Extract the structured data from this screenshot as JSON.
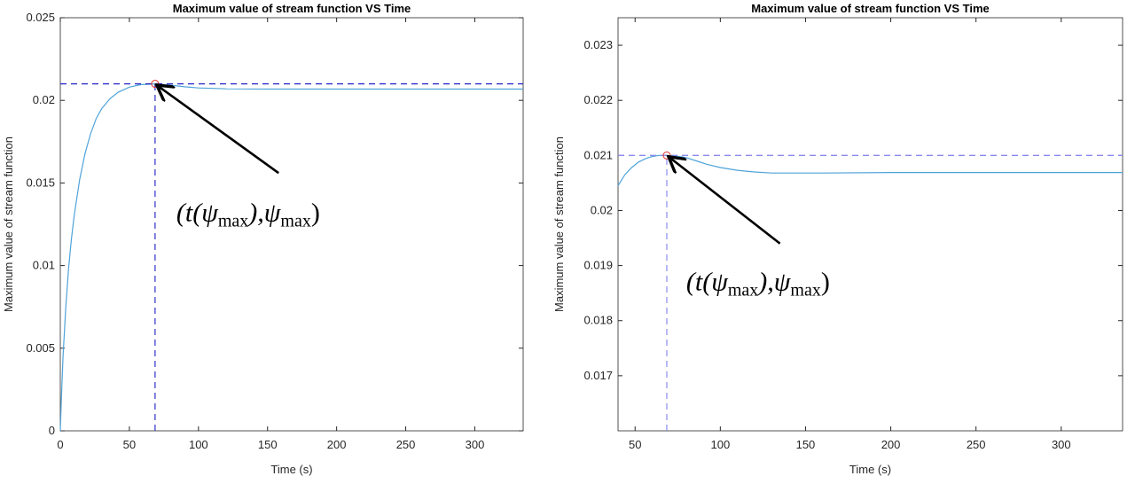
{
  "chart_data": [
    {
      "type": "line",
      "title": "Maximum value of stream function VS Time",
      "xlabel": "Time (s)",
      "ylabel": "Maximum value of stream function",
      "xlim": [
        0,
        335
      ],
      "ylim": [
        0,
        0.025
      ],
      "xticks": [
        0,
        50,
        100,
        150,
        200,
        250,
        300
      ],
      "xtick_labels": [
        "0",
        "50",
        "100",
        "150",
        "200",
        "250",
        "300"
      ],
      "yticks": [
        0,
        0.005,
        0.01,
        0.015,
        0.02,
        0.025
      ],
      "ytick_labels": [
        "0",
        "0.005",
        "0.01",
        "0.015",
        "0.02",
        "0.025"
      ],
      "grid": false,
      "series": [
        {
          "x": [
            0,
            1,
            2,
            4,
            6,
            8,
            10,
            14,
            18,
            22,
            26,
            30,
            36,
            42,
            50,
            58,
            68.6,
            80,
            90,
            100,
            120,
            150,
            200,
            250,
            300,
            335
          ],
          "y": [
            0,
            0.0025,
            0.0045,
            0.0075,
            0.0098,
            0.0116,
            0.013,
            0.0152,
            0.0168,
            0.018,
            0.0189,
            0.0195,
            0.0201,
            0.0205,
            0.0208,
            0.02095,
            0.021,
            0.02092,
            0.02082,
            0.02075,
            0.0207,
            0.02068,
            0.02068,
            0.02068,
            0.02068,
            0.02068
          ]
        }
      ],
      "peak": {
        "x": 68.6,
        "y": 0.021
      },
      "reference_lines": {
        "horizontal_y": 0.021,
        "vertical_x": 68.6
      },
      "annotation": {
        "text_main": "(t(ψ",
        "sub": "max",
        "text_mid": "),ψ",
        "text_end": ")",
        "xy": [
          68.6,
          0.021
        ],
        "xytext": [
          158,
          0.0156
        ],
        "text_at": [
          84,
          0.0127
        ]
      },
      "colors": {
        "line": "#4fa3d9",
        "dash": "#2e2ec8",
        "marker": "#e03030"
      }
    },
    {
      "type": "line",
      "title": "Maximum value of stream function VS Time",
      "xlabel": "Time (s)",
      "ylabel": "Maximum value of stream function",
      "xlim": [
        40,
        336
      ],
      "ylim": [
        0.016,
        0.0235
      ],
      "xticks": [
        50,
        100,
        150,
        200,
        250,
        300
      ],
      "xtick_labels": [
        "50",
        "100",
        "150",
        "200",
        "250",
        "300"
      ],
      "yticks": [
        0.017,
        0.018,
        0.019,
        0.02,
        0.021,
        0.022,
        0.023
      ],
      "ytick_labels": [
        "0.017",
        "0.018",
        "0.019",
        "0.02",
        "0.021",
        "0.022",
        "0.023"
      ],
      "grid": false,
      "series": [
        {
          "x": [
            40,
            44,
            48,
            52,
            56,
            60,
            64,
            68.6,
            74,
            80,
            86,
            92,
            100,
            110,
            120,
            130,
            140,
            160,
            200,
            250,
            300,
            336
          ],
          "y": [
            0.02045,
            0.02065,
            0.02078,
            0.02088,
            0.02094,
            0.02098,
            0.021,
            0.021,
            0.02099,
            0.02096,
            0.0209,
            0.02084,
            0.02078,
            0.02073,
            0.0207,
            0.02068,
            0.02068,
            0.02068,
            0.02069,
            0.02069,
            0.02069,
            0.02069
          ]
        }
      ],
      "peak": {
        "x": 68.6,
        "y": 0.021
      },
      "reference_lines": {
        "horizontal_y": 0.021,
        "vertical_x": 68.6
      },
      "annotation": {
        "text_main": "(t(ψ",
        "sub": "max",
        "text_mid": "),ψ",
        "text_end": ")",
        "xy": [
          68.6,
          0.021
        ],
        "xytext": [
          135,
          0.0194
        ],
        "text_at": [
          80,
          0.01855
        ]
      },
      "colors": {
        "line": "#4fa3d9",
        "dash": "#8a8aee",
        "marker": "#e03030"
      }
    }
  ]
}
